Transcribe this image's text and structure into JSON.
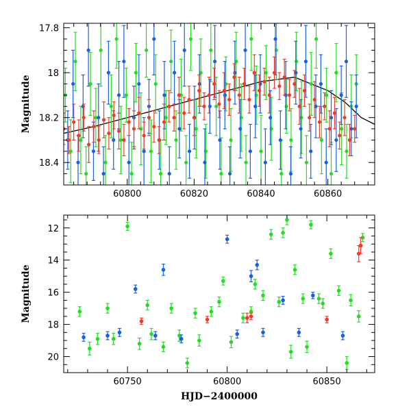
{
  "chart_data": [
    {
      "type": "scatter",
      "title": "",
      "xlabel": "",
      "ylabel": "Magnitude",
      "xlim": [
        60781,
        60874
      ],
      "ylim": [
        18.5,
        17.78
      ],
      "y_inverted": true,
      "grid": false,
      "legend": "none",
      "x_ticks": [
        60800,
        60820,
        60840,
        60860
      ],
      "y_ticks": [
        17.8,
        18,
        18.2,
        18.4
      ],
      "x_tick_labels": [
        "60800",
        "60820",
        "60840",
        "60860"
      ],
      "y_tick_labels": [
        "17.8",
        "18",
        "18.2",
        "18.4"
      ],
      "curve": {
        "description": "black model trend line",
        "x": [
          60781,
          60790,
          60800,
          60810,
          60820,
          60830,
          60840,
          60850,
          60860,
          60865,
          60870,
          60874
        ],
        "y": [
          18.27,
          18.24,
          18.2,
          18.16,
          18.12,
          18.08,
          18.04,
          18.02,
          18.08,
          18.13,
          18.2,
          18.23
        ]
      },
      "series": [
        {
          "color": "#22dd22",
          "x": [
            60781.5,
            60783.1,
            60784.5,
            60786.1,
            60787.7,
            60789.0,
            60790.6,
            60792.1,
            60793.5,
            60795.2,
            60796.8,
            60798.1,
            60799.7,
            60801.3,
            60802.6,
            60804.1,
            60805.7,
            60807.1,
            60808.5,
            60810.0,
            60811.6,
            60813.1,
            60814.6,
            60816.1,
            60817.6,
            60819.0,
            60820.6,
            60822.0,
            60823.5,
            60825.0,
            60826.6,
            60828.1,
            60829.5,
            60831.0,
            60832.6,
            60834.1,
            60835.5,
            60837.1,
            60838.6,
            60840.0,
            60841.5,
            60843.1,
            60844.6,
            60846.1,
            60847.6,
            60849.0,
            60850.6,
            60852.1,
            60853.6,
            60855.0,
            60856.5,
            60858.1,
            60859.6,
            60861.0,
            60862.5,
            60864.1,
            60865.6,
            60867.0,
            60868.5
          ],
          "y": [
            18.1,
            18.35,
            17.95,
            18.3,
            18.45,
            18.05,
            18.2,
            17.9,
            18.4,
            18.15,
            17.85,
            18.3,
            18.1,
            18.45,
            18.0,
            18.25,
            17.9,
            18.35,
            18.05,
            18.45,
            18.2,
            17.95,
            18.3,
            18.1,
            18.4,
            17.85,
            18.25,
            18.0,
            18.35,
            17.9,
            18.15,
            18.45,
            18.05,
            18.3,
            17.95,
            18.2,
            18.4,
            17.85,
            18.1,
            18.35,
            18.0,
            18.25,
            17.9,
            18.45,
            18.15,
            18.3,
            17.95,
            18.2,
            18.4,
            18.05,
            17.85,
            18.3,
            18.1,
            18.45,
            18.0,
            18.25,
            18.35,
            18.15,
            18.05
          ],
          "err": [
            0.12,
            0.14,
            0.13,
            0.15,
            0.12,
            0.14,
            0.13,
            0.16,
            0.12,
            0.14,
            0.13,
            0.15,
            0.12,
            0.14,
            0.13,
            0.16,
            0.12,
            0.14,
            0.13,
            0.15,
            0.12,
            0.14,
            0.13,
            0.16,
            0.12,
            0.14,
            0.13,
            0.15,
            0.12,
            0.14,
            0.13,
            0.16,
            0.12,
            0.14,
            0.13,
            0.15,
            0.12,
            0.14,
            0.13,
            0.16,
            0.12,
            0.14,
            0.13,
            0.15,
            0.12,
            0.14,
            0.13,
            0.16,
            0.12,
            0.14,
            0.13,
            0.15,
            0.12,
            0.14,
            0.13,
            0.16,
            0.12,
            0.14,
            0.13
          ]
        },
        {
          "color": "#1a5fe0",
          "x": [
            60782.2,
            60783.8,
            60785.3,
            60786.8,
            60788.4,
            60789.9,
            60791.4,
            60792.9,
            60794.4,
            60795.9,
            60797.5,
            60799.0,
            60800.5,
            60802.0,
            60803.5,
            60805.0,
            60806.5,
            60808.0,
            60809.6,
            60811.1,
            60812.6,
            60814.1,
            60815.6,
            60817.1,
            60818.6,
            60820.1,
            60821.6,
            60823.2,
            60824.7,
            60826.2,
            60827.7,
            60829.2,
            60830.7,
            60832.2,
            60833.8,
            60835.3,
            60836.8,
            60838.3,
            60839.8,
            60841.3,
            60842.8,
            60844.3,
            60845.8,
            60847.4,
            60848.9,
            60850.4,
            60851.9,
            60853.4,
            60854.9,
            60856.4,
            60857.9,
            60859.5,
            60861.0,
            60862.5,
            60864.0,
            60865.5,
            60867.0,
            60868.5
          ],
          "y": [
            18.3,
            18.05,
            18.4,
            18.15,
            17.9,
            18.35,
            18.2,
            18.45,
            18.0,
            18.3,
            18.1,
            17.95,
            18.4,
            18.2,
            18.05,
            18.35,
            18.15,
            17.85,
            18.3,
            18.1,
            18.45,
            18.0,
            18.25,
            17.9,
            18.35,
            18.2,
            18.05,
            18.4,
            18.15,
            17.95,
            18.3,
            18.1,
            18.45,
            18.0,
            18.25,
            17.9,
            18.35,
            18.15,
            18.05,
            18.4,
            18.2,
            17.85,
            18.3,
            18.1,
            18.45,
            18.0,
            18.25,
            17.95,
            18.35,
            18.15,
            18.05,
            18.4,
            18.2,
            18.3,
            18.1,
            17.95,
            18.25,
            18.15
          ],
          "err": [
            0.13,
            0.15,
            0.12,
            0.14,
            0.16,
            0.13,
            0.15,
            0.12,
            0.14,
            0.13,
            0.15,
            0.16,
            0.12,
            0.14,
            0.13,
            0.15,
            0.12,
            0.16,
            0.13,
            0.15,
            0.12,
            0.14,
            0.13,
            0.16,
            0.12,
            0.14,
            0.13,
            0.15,
            0.12,
            0.16,
            0.13,
            0.15,
            0.12,
            0.14,
            0.13,
            0.16,
            0.12,
            0.14,
            0.13,
            0.15,
            0.12,
            0.16,
            0.13,
            0.15,
            0.12,
            0.14,
            0.13,
            0.16,
            0.12,
            0.14,
            0.13,
            0.15,
            0.12,
            0.14,
            0.13,
            0.16,
            0.12,
            0.14
          ]
        },
        {
          "color": "#f03a2a",
          "x": [
            60781.0,
            60782.5,
            60784.0,
            60785.5,
            60787.0,
            60788.5,
            60790.0,
            60791.5,
            60793.0,
            60794.5,
            60796.0,
            60797.5,
            60799.0,
            60800.5,
            60802.0,
            60803.5,
            60805.0,
            60806.5,
            60808.0,
            60809.5,
            60811.0,
            60812.5,
            60814.0,
            60815.5,
            60817.0,
            60818.5,
            60820.0,
            60821.5,
            60823.0,
            60824.5,
            60826.0,
            60827.5,
            60829.0,
            60830.5,
            60832.0,
            60833.5,
            60835.0,
            60836.5,
            60838.0,
            60839.5,
            60841.0,
            60842.5,
            60844.0,
            60845.5,
            60847.0,
            60848.5,
            60850.0,
            60851.5,
            60853.0,
            60854.5,
            60856.0,
            60857.5,
            60859.0,
            60860.5,
            60862.0,
            60863.5,
            60865.0,
            60866.5,
            60868.0
          ],
          "y": [
            18.25,
            18.3,
            18.22,
            18.28,
            18.2,
            18.32,
            18.24,
            18.3,
            18.21,
            18.27,
            18.19,
            18.26,
            18.3,
            18.22,
            18.25,
            18.18,
            18.28,
            18.2,
            18.24,
            18.3,
            18.22,
            18.15,
            18.2,
            18.1,
            18.18,
            18.12,
            18.2,
            18.08,
            18.15,
            18.1,
            18.05,
            18.14,
            18.08,
            18.12,
            18.02,
            18.1,
            18.05,
            18.12,
            18.0,
            18.08,
            18.04,
            18.1,
            18.0,
            18.06,
            18.02,
            18.1,
            18.05,
            18.15,
            18.08,
            18.2,
            18.12,
            18.22,
            18.15,
            18.25,
            18.18,
            18.28,
            18.2,
            18.3,
            18.25
          ],
          "err": [
            0.07,
            0.06,
            0.08,
            0.07,
            0.06,
            0.08,
            0.07,
            0.06,
            0.08,
            0.07,
            0.06,
            0.08,
            0.07,
            0.06,
            0.08,
            0.07,
            0.06,
            0.08,
            0.07,
            0.06,
            0.08,
            0.07,
            0.06,
            0.08,
            0.07,
            0.06,
            0.08,
            0.07,
            0.06,
            0.08,
            0.07,
            0.06,
            0.08,
            0.07,
            0.06,
            0.08,
            0.07,
            0.06,
            0.08,
            0.07,
            0.06,
            0.08,
            0.07,
            0.06,
            0.08,
            0.07,
            0.06,
            0.08,
            0.07,
            0.06,
            0.08,
            0.07,
            0.06,
            0.08,
            0.07,
            0.06,
            0.08,
            0.07,
            0.06
          ]
        }
      ]
    },
    {
      "type": "scatter",
      "title": "",
      "xlabel": "HJD−2400000",
      "ylabel": "Magnitude",
      "xlim": [
        60718,
        60874
      ],
      "ylim": [
        21,
        11.2
      ],
      "y_inverted": true,
      "grid": false,
      "legend": "none",
      "x_ticks": [
        60750,
        60800,
        60850
      ],
      "y_ticks": [
        12,
        14,
        16,
        18,
        20
      ],
      "x_tick_labels": [
        "60750",
        "60800",
        "60850"
      ],
      "y_tick_labels": [
        "12",
        "14",
        "16",
        "18",
        "20"
      ],
      "series": [
        {
          "color": "#22dd22",
          "x": [
            60750,
            60768,
            60772,
            60780,
            60792,
            60798,
            60808,
            60814,
            60818,
            60822,
            60826,
            60828,
            60830,
            60834,
            60838,
            60842,
            60848,
            60852,
            60856,
            60860,
            60866,
            60868,
            60731,
            60735,
            60743,
            60756,
            60762,
            60776,
            60786,
            60802,
            60832,
            60840,
            60862,
            60726,
            60740,
            60760,
            60784,
            60796,
            60812,
            60846
          ],
          "y": [
            11.9,
            19.4,
            17.0,
            20.4,
            17.2,
            15.3,
            17.6,
            15.5,
            16.2,
            12.4,
            16.6,
            12.3,
            11.5,
            14.6,
            16.4,
            11.8,
            16.7,
            13.6,
            15.9,
            20.4,
            17.5,
            12.6,
            19.5,
            18.9,
            18.9,
            19.2,
            18.6,
            18.7,
            19.0,
            19.1,
            19.7,
            19.4,
            16.5,
            17.2,
            17.0,
            16.8,
            17.3,
            16.6,
            17.2,
            16.4
          ],
          "err": [
            0.25,
            0.3,
            0.3,
            0.3,
            0.3,
            0.25,
            0.3,
            0.3,
            0.3,
            0.3,
            0.3,
            0.3,
            0.3,
            0.3,
            0.3,
            0.25,
            0.3,
            0.3,
            0.3,
            0.4,
            0.35,
            0.25,
            0.4,
            0.35,
            0.35,
            0.35,
            0.35,
            0.35,
            0.35,
            0.35,
            0.4,
            0.35,
            0.35,
            0.3,
            0.3,
            0.3,
            0.3,
            0.3,
            0.3,
            0.3
          ]
        },
        {
          "color": "#1a5fe0",
          "x": [
            60754,
            60768,
            60800,
            60812,
            60815,
            60828,
            60843,
            60728,
            60740,
            60746,
            60764,
            60777,
            60805,
            60818,
            60836,
            60858
          ],
          "y": [
            15.8,
            14.6,
            12.7,
            15.0,
            14.3,
            16.5,
            16.2,
            18.8,
            18.7,
            18.5,
            18.7,
            18.9,
            18.6,
            18.5,
            18.5,
            18.7
          ],
          "err": [
            0.25,
            0.35,
            0.25,
            0.35,
            0.3,
            0.25,
            0.2,
            0.25,
            0.25,
            0.25,
            0.25,
            0.25,
            0.25,
            0.25,
            0.25,
            0.25
          ]
        },
        {
          "color": "#f03a2a",
          "x": [
            60866,
            60867,
            60810,
            60757,
            60790,
            60812,
            60850
          ],
          "y": [
            13.6,
            13.1,
            17.6,
            17.8,
            17.7,
            17.5,
            17.7
          ],
          "err": [
            0.5,
            0.5,
            0.3,
            0.2,
            0.2,
            0.2,
            0.2
          ]
        }
      ]
    }
  ]
}
